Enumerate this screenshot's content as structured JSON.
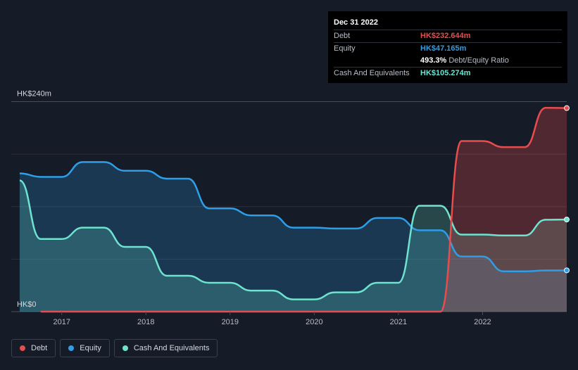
{
  "tooltip": {
    "date": "Dec 31 2022",
    "debt_label": "Debt",
    "debt_value": "HK$232.644m",
    "equity_label": "Equity",
    "equity_value": "HK$47.165m",
    "ratio_value": "493.3%",
    "ratio_label": "Debt/Equity Ratio",
    "cash_label": "Cash And Equivalents",
    "cash_value": "HK$105.274m"
  },
  "legend": {
    "debt": "Debt",
    "equity": "Equity",
    "cash": "Cash And Equivalents"
  },
  "colors": {
    "debt": "#e84d4d",
    "equity": "#2e9ee8",
    "cash": "#6ee3cf",
    "background": "#151b27",
    "grid": "#2b313c"
  },
  "chart_data": {
    "type": "area",
    "title": "",
    "xlabel": "",
    "ylabel": "",
    "y_unit_prefix": "HK$",
    "ylim": [
      0,
      240
    ],
    "y_ticks": [
      {
        "value": 0,
        "label": "HK$0"
      },
      {
        "value": 240,
        "label": "HK$240m"
      }
    ],
    "xlim": [
      2016.5,
      2023.0
    ],
    "x_ticks": [
      {
        "value": 2017,
        "label": "2017"
      },
      {
        "value": 2018,
        "label": "2018"
      },
      {
        "value": 2019,
        "label": "2019"
      },
      {
        "value": 2020,
        "label": "2020"
      },
      {
        "value": 2021,
        "label": "2021"
      },
      {
        "value": 2022,
        "label": "2022"
      }
    ],
    "series": [
      {
        "name": "Equity",
        "key": "equity",
        "points": [
          [
            2016.5,
            158
          ],
          [
            2016.75,
            154
          ],
          [
            2017.0,
            154
          ],
          [
            2017.25,
            171
          ],
          [
            2017.5,
            171
          ],
          [
            2017.75,
            161
          ],
          [
            2018.0,
            161
          ],
          [
            2018.25,
            152
          ],
          [
            2018.5,
            152
          ],
          [
            2018.75,
            118
          ],
          [
            2019.0,
            118
          ],
          [
            2019.25,
            110
          ],
          [
            2019.5,
            110
          ],
          [
            2019.75,
            96
          ],
          [
            2020.0,
            96
          ],
          [
            2020.25,
            95
          ],
          [
            2020.5,
            95
          ],
          [
            2020.75,
            107
          ],
          [
            2021.0,
            107
          ],
          [
            2021.25,
            93
          ],
          [
            2021.5,
            93
          ],
          [
            2021.75,
            63
          ],
          [
            2022.0,
            63
          ],
          [
            2022.25,
            46
          ],
          [
            2022.5,
            46
          ],
          [
            2022.75,
            47
          ],
          [
            2023.0,
            47.165
          ]
        ]
      },
      {
        "name": "Cash And Equivalents",
        "key": "cash",
        "points": [
          [
            2016.5,
            150
          ],
          [
            2016.75,
            83
          ],
          [
            2017.0,
            83
          ],
          [
            2017.25,
            96
          ],
          [
            2017.5,
            96
          ],
          [
            2017.75,
            74
          ],
          [
            2018.0,
            74
          ],
          [
            2018.25,
            41
          ],
          [
            2018.5,
            41
          ],
          [
            2018.75,
            33
          ],
          [
            2019.0,
            33
          ],
          [
            2019.25,
            24
          ],
          [
            2019.5,
            24
          ],
          [
            2019.75,
            14
          ],
          [
            2020.0,
            14
          ],
          [
            2020.25,
            22
          ],
          [
            2020.5,
            22
          ],
          [
            2020.75,
            33
          ],
          [
            2021.0,
            33
          ],
          [
            2021.25,
            121
          ],
          [
            2021.5,
            121
          ],
          [
            2021.75,
            88
          ],
          [
            2022.0,
            88
          ],
          [
            2022.25,
            87
          ],
          [
            2022.5,
            87
          ],
          [
            2022.75,
            105
          ],
          [
            2023.0,
            105.274
          ]
        ]
      },
      {
        "name": "Debt",
        "key": "debt",
        "points": [
          [
            2016.75,
            0
          ],
          [
            2021.5,
            0
          ],
          [
            2021.75,
            195
          ],
          [
            2022.0,
            195
          ],
          [
            2022.25,
            188
          ],
          [
            2022.5,
            188
          ],
          [
            2022.75,
            233
          ],
          [
            2023.0,
            232.644
          ]
        ]
      }
    ]
  }
}
